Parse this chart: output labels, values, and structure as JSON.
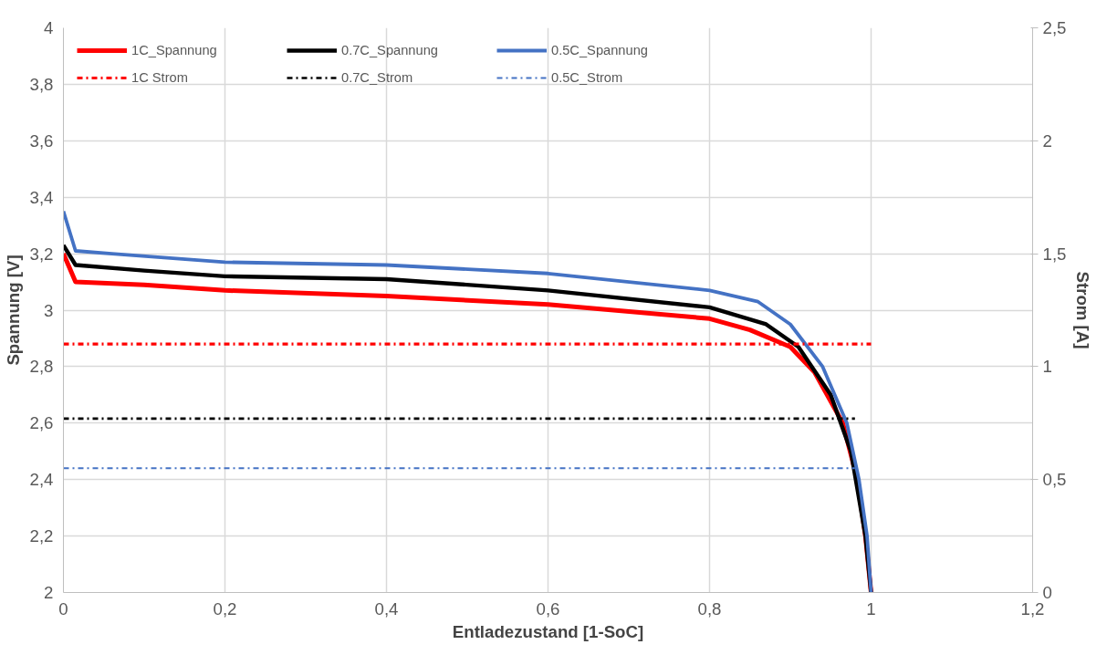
{
  "chart_data": {
    "type": "line",
    "xlabel": "Entladezustand [1-SoC]",
    "ylabel": "Spannung [V]",
    "y2label": "Strom [A]",
    "xlim": [
      0,
      1.2
    ],
    "xticks": [
      0,
      {
        "value": 0.2,
        "label": "0,2"
      },
      {
        "value": 0.4,
        "label": "0,4"
      },
      {
        "value": 0.6,
        "label": "0,6"
      },
      {
        "value": 0.8,
        "label": "0,8"
      },
      1,
      {
        "value": 1.2,
        "label": "1,2"
      }
    ],
    "ylim": [
      2,
      4
    ],
    "yticks": [
      2,
      {
        "value": 2.2,
        "label": "2,2"
      },
      {
        "value": 2.4,
        "label": "2,4"
      },
      {
        "value": 2.6,
        "label": "2,6"
      },
      {
        "value": 2.8,
        "label": "2,8"
      },
      3,
      {
        "value": 3.2,
        "label": "3,2"
      },
      {
        "value": 3.4,
        "label": "3,4"
      },
      {
        "value": 3.6,
        "label": "3,6"
      },
      {
        "value": 3.8,
        "label": "3,8"
      },
      4
    ],
    "y2lim": [
      0,
      2.5
    ],
    "y2ticks": [
      0,
      {
        "value": 0.5,
        "label": "0,5"
      },
      1,
      {
        "value": 1.5,
        "label": "1,5"
      },
      2,
      {
        "value": 2.5,
        "label": "2,5"
      }
    ],
    "grid": true,
    "legend": "top",
    "marker": "none",
    "series": [
      {
        "name": "1C_Spannung",
        "color": "#ff0000",
        "line_style": "solid",
        "x": [
          0,
          0.015,
          0.1,
          0.2,
          0.4,
          0.6,
          0.8,
          0.85,
          0.9,
          0.93,
          0.965,
          0.983,
          0.993,
          1.0
        ],
        "values": [
          3.2,
          3.1,
          3.09,
          3.07,
          3.05,
          3.02,
          2.97,
          2.93,
          2.87,
          2.78,
          2.6,
          2.4,
          2.2,
          2.0
        ]
      },
      {
        "name": "0.7C_Spannung",
        "color": "#000000",
        "line_style": "solid",
        "x": [
          0,
          0.015,
          0.1,
          0.2,
          0.4,
          0.6,
          0.8,
          0.87,
          0.91,
          0.95,
          0.975,
          0.993,
          1.0
        ],
        "values": [
          3.23,
          3.16,
          3.14,
          3.12,
          3.11,
          3.07,
          3.01,
          2.95,
          2.87,
          2.7,
          2.5,
          2.2,
          2.0
        ]
      },
      {
        "name": "0.5C_Spannung",
        "color": "#4472c4",
        "line_style": "solid",
        "x": [
          0,
          0.015,
          0.06,
          0.2,
          0.4,
          0.6,
          0.8,
          0.86,
          0.9,
          0.94,
          0.97,
          0.985,
          0.995,
          1.0
        ],
        "values": [
          3.35,
          3.21,
          3.2,
          3.17,
          3.16,
          3.13,
          3.07,
          3.03,
          2.95,
          2.8,
          2.6,
          2.4,
          2.2,
          2.0
        ]
      },
      {
        "name": "1C Strom",
        "color": "#ff0000",
        "line_style": "dashdot",
        "axis": "y2",
        "x": [
          0,
          1.0
        ],
        "values": [
          1.1,
          1.1
        ]
      },
      {
        "name": "0.7C_Strom",
        "color": "#000000",
        "line_style": "dashdot",
        "axis": "y2",
        "x": [
          0,
          0.98
        ],
        "values": [
          0.77,
          0.77
        ]
      },
      {
        "name": "0.5C_Strom",
        "color": "#4472c4",
        "line_style": "dashdot",
        "axis": "y2",
        "x": [
          0,
          0.98
        ],
        "values": [
          0.55,
          0.55
        ]
      }
    ]
  }
}
